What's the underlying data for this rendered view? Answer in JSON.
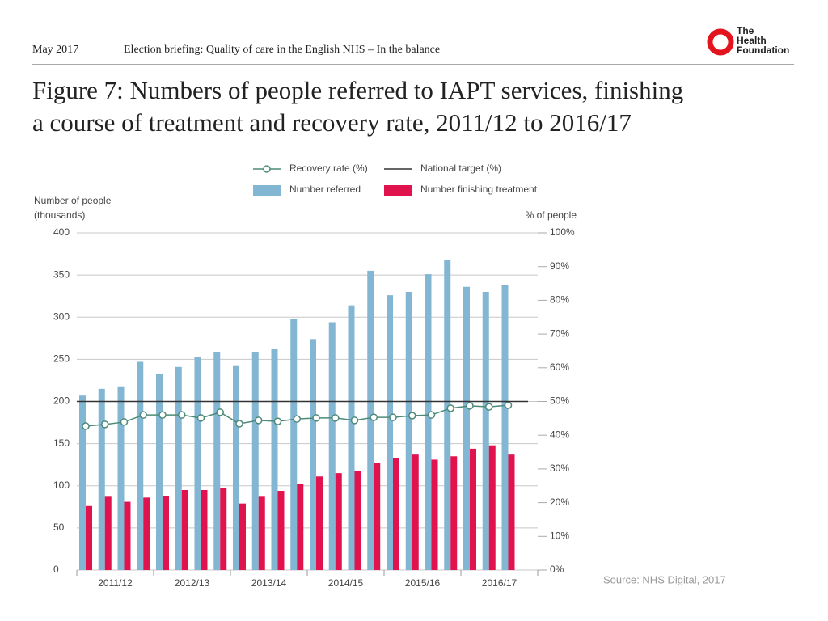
{
  "header": {
    "date": "May 2017",
    "briefing": "Election briefing: Quality of care in the English NHS – In the balance",
    "logo": [
      "The",
      "Health",
      "Foundation"
    ]
  },
  "source": "Source:  NHS Digital, 2017",
  "chart_data": {
    "type": "bar",
    "title": [
      "Figure 7: Numbers of people referred to IAPT services, finishing",
      "a course of treatment and recovery rate, 2011/12 to 2016/17"
    ],
    "ylabel": [
      "Number of people",
      "(thousands)"
    ],
    "y2label": "% of people",
    "categories": [
      null,
      null,
      null,
      null,
      null,
      null,
      null,
      null,
      null,
      null,
      null,
      null,
      null,
      null,
      null,
      null,
      null,
      null,
      null,
      null,
      null,
      null,
      null
    ],
    "year_groups": [
      "2011/12",
      "2012/13",
      "2013/14",
      "2014/15",
      "2015/16",
      "2016/17"
    ],
    "ylim": [
      0,
      400
    ],
    "yticks": [
      0,
      50,
      100,
      150,
      200,
      250,
      300,
      350,
      400
    ],
    "y2lim": [
      0,
      100
    ],
    "y2ticks": [
      {
        "value": 0,
        "label": "0%"
      },
      {
        "value": 10,
        "label": "10%"
      },
      {
        "value": 20,
        "label": "20%"
      },
      {
        "value": 30,
        "label": "30%"
      },
      {
        "value": 40,
        "label": "40%"
      },
      {
        "value": 50,
        "label": "50%"
      },
      {
        "value": 60,
        "label": "60%"
      },
      {
        "value": 70,
        "label": "70%"
      },
      {
        "value": 80,
        "label": "80%"
      },
      {
        "value": 90,
        "label": "90%"
      },
      {
        "value": 100,
        "label": "100%"
      }
    ],
    "grid": true,
    "series": [
      {
        "name": "Number referred",
        "type": "bar",
        "color": "#82b6d2",
        "values": [
          207,
          215,
          218,
          247,
          233,
          241,
          253,
          259,
          242,
          259,
          262,
          298,
          274,
          294,
          314,
          355,
          326,
          330,
          351,
          368,
          336,
          330,
          338
        ]
      },
      {
        "name": "Number finishing treatment",
        "type": "bar",
        "color": "#e0134f",
        "values": [
          76,
          87,
          81,
          86,
          88,
          95,
          95,
          97,
          79,
          87,
          94,
          102,
          111,
          115,
          118,
          127,
          133,
          137,
          131,
          135,
          144,
          148,
          137
        ]
      },
      {
        "name": "Recovery rate (%)",
        "type": "line",
        "axis": "y2",
        "color": "#4d8a78",
        "values": [
          42.7,
          43.2,
          43.9,
          46.0,
          46.0,
          46.0,
          45.1,
          46.8,
          43.4,
          44.4,
          44.1,
          44.8,
          45.1,
          45.1,
          44.4,
          45.3,
          45.3,
          45.8,
          46.0,
          48.0,
          48.7,
          48.4,
          48.9
        ]
      },
      {
        "name": "National target (%)",
        "type": "hline",
        "axis": "y2",
        "color": "#333333",
        "value": 50
      }
    ]
  }
}
